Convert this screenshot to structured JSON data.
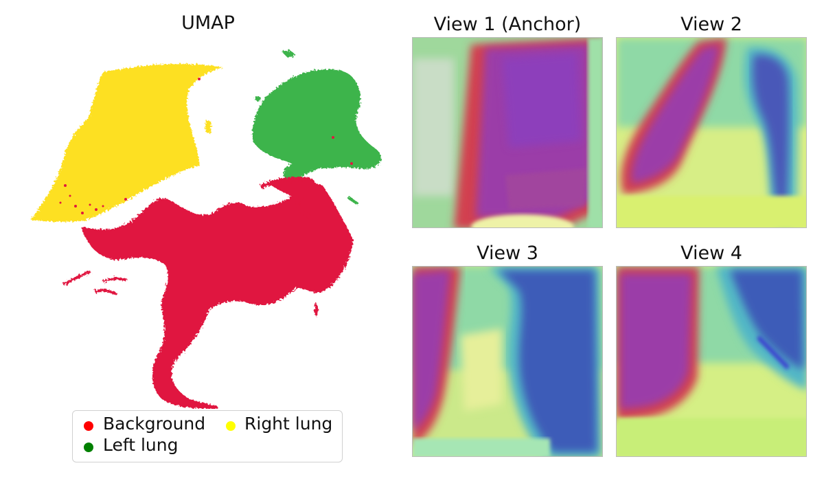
{
  "chart_data": [
    {
      "type": "scatter",
      "title": "UMAP",
      "legend_placement": "bottom",
      "series": [
        {
          "name": "Background",
          "legend_color": "#ff0000",
          "point_color": "#e0173f"
        },
        {
          "name": "Left lung",
          "legend_color": "#008000",
          "point_color": "#3cb44b"
        },
        {
          "name": "Right lung",
          "legend_color": "#ffff00",
          "point_color": "#fde021"
        }
      ]
    },
    {
      "type": "heatmap",
      "title": "View 1 (Anchor)"
    },
    {
      "type": "heatmap",
      "title": "View 2"
    },
    {
      "type": "heatmap",
      "title": "View 3"
    },
    {
      "type": "heatmap",
      "title": "View 4"
    }
  ]
}
